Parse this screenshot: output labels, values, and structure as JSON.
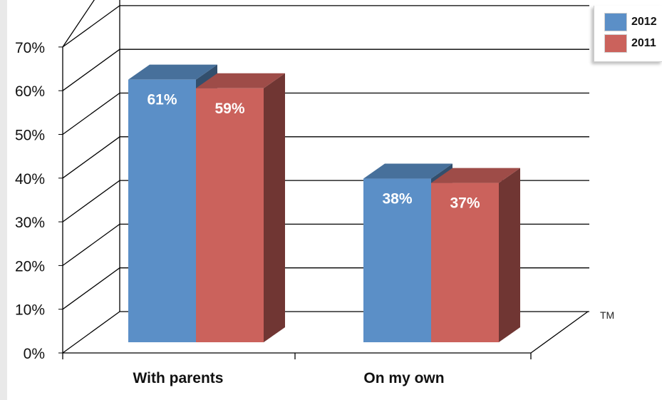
{
  "chart_data": {
    "type": "bar",
    "categories": [
      "With parents",
      "On my own"
    ],
    "series": [
      {
        "name": "2012",
        "values": [
          61,
          38
        ],
        "color": "#5b8fc7"
      },
      {
        "name": "2011",
        "values": [
          59,
          37
        ],
        "color": "#cb625c"
      }
    ],
    "data_labels": [
      [
        "61%",
        "38%"
      ],
      [
        "59%",
        "37%"
      ]
    ],
    "y_ticks": [
      "0%",
      "10%",
      "20%",
      "30%",
      "40%",
      "50%",
      "60%",
      "70%"
    ],
    "ylim": [
      0,
      70
    ],
    "grid": true,
    "three_d": true,
    "legend_position": "top-right"
  },
  "legend": {
    "items": [
      {
        "label": "2012",
        "color": "#5b8fc7"
      },
      {
        "label": "2011",
        "color": "#cb625c"
      }
    ]
  },
  "trademark": "TM"
}
